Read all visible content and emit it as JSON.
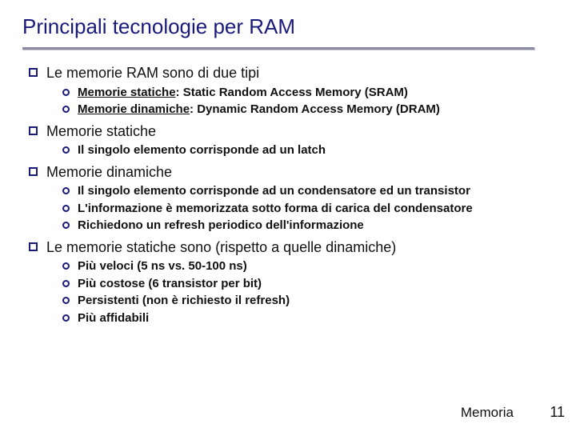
{
  "colors": {
    "title": "#1a1a7a",
    "rule": "#8a8aa0",
    "rule_shadow": "#c4c4d4",
    "bullet_border": "#1a1a7a",
    "text": "#111111",
    "background": "#fefefe"
  },
  "typography": {
    "title_fontsize": 26,
    "l1_fontsize": 18,
    "l2_fontsize": 15,
    "footer_fontsize": 17
  },
  "title": "Principali tecnologie per RAM",
  "items": [
    {
      "label": "Le memorie RAM sono di due tipi",
      "sub": [
        {
          "underline": "Memorie statiche",
          "rest": ": Static Random Access Memory (SRAM)"
        },
        {
          "underline": "Memorie dinamiche",
          "rest": ": Dynamic Random Access Memory (DRAM)"
        }
      ]
    },
    {
      "label": "Memorie statiche",
      "sub": [
        {
          "text": "Il singolo elemento corrisponde ad un latch"
        }
      ]
    },
    {
      "label": "Memorie dinamiche",
      "sub": [
        {
          "text": "Il singolo elemento corrisponde ad un condensatore ed un transistor"
        },
        {
          "text": "L'informazione è memorizzata sotto forma di carica del condensatore"
        },
        {
          "text": "Richiedono un refresh periodico dell'informazione"
        }
      ]
    },
    {
      "label": "Le memorie statiche sono (rispetto a quelle dinamiche)",
      "sub": [
        {
          "text": "Più veloci (5 ns vs. 50-100 ns)"
        },
        {
          "text": "Più costose (6 transistor per bit)"
        },
        {
          "text": "Persistenti (non è richiesto il refresh)"
        },
        {
          "text": "Più affidabili"
        }
      ]
    }
  ],
  "footer": {
    "label": "Memoria",
    "page": "11"
  }
}
